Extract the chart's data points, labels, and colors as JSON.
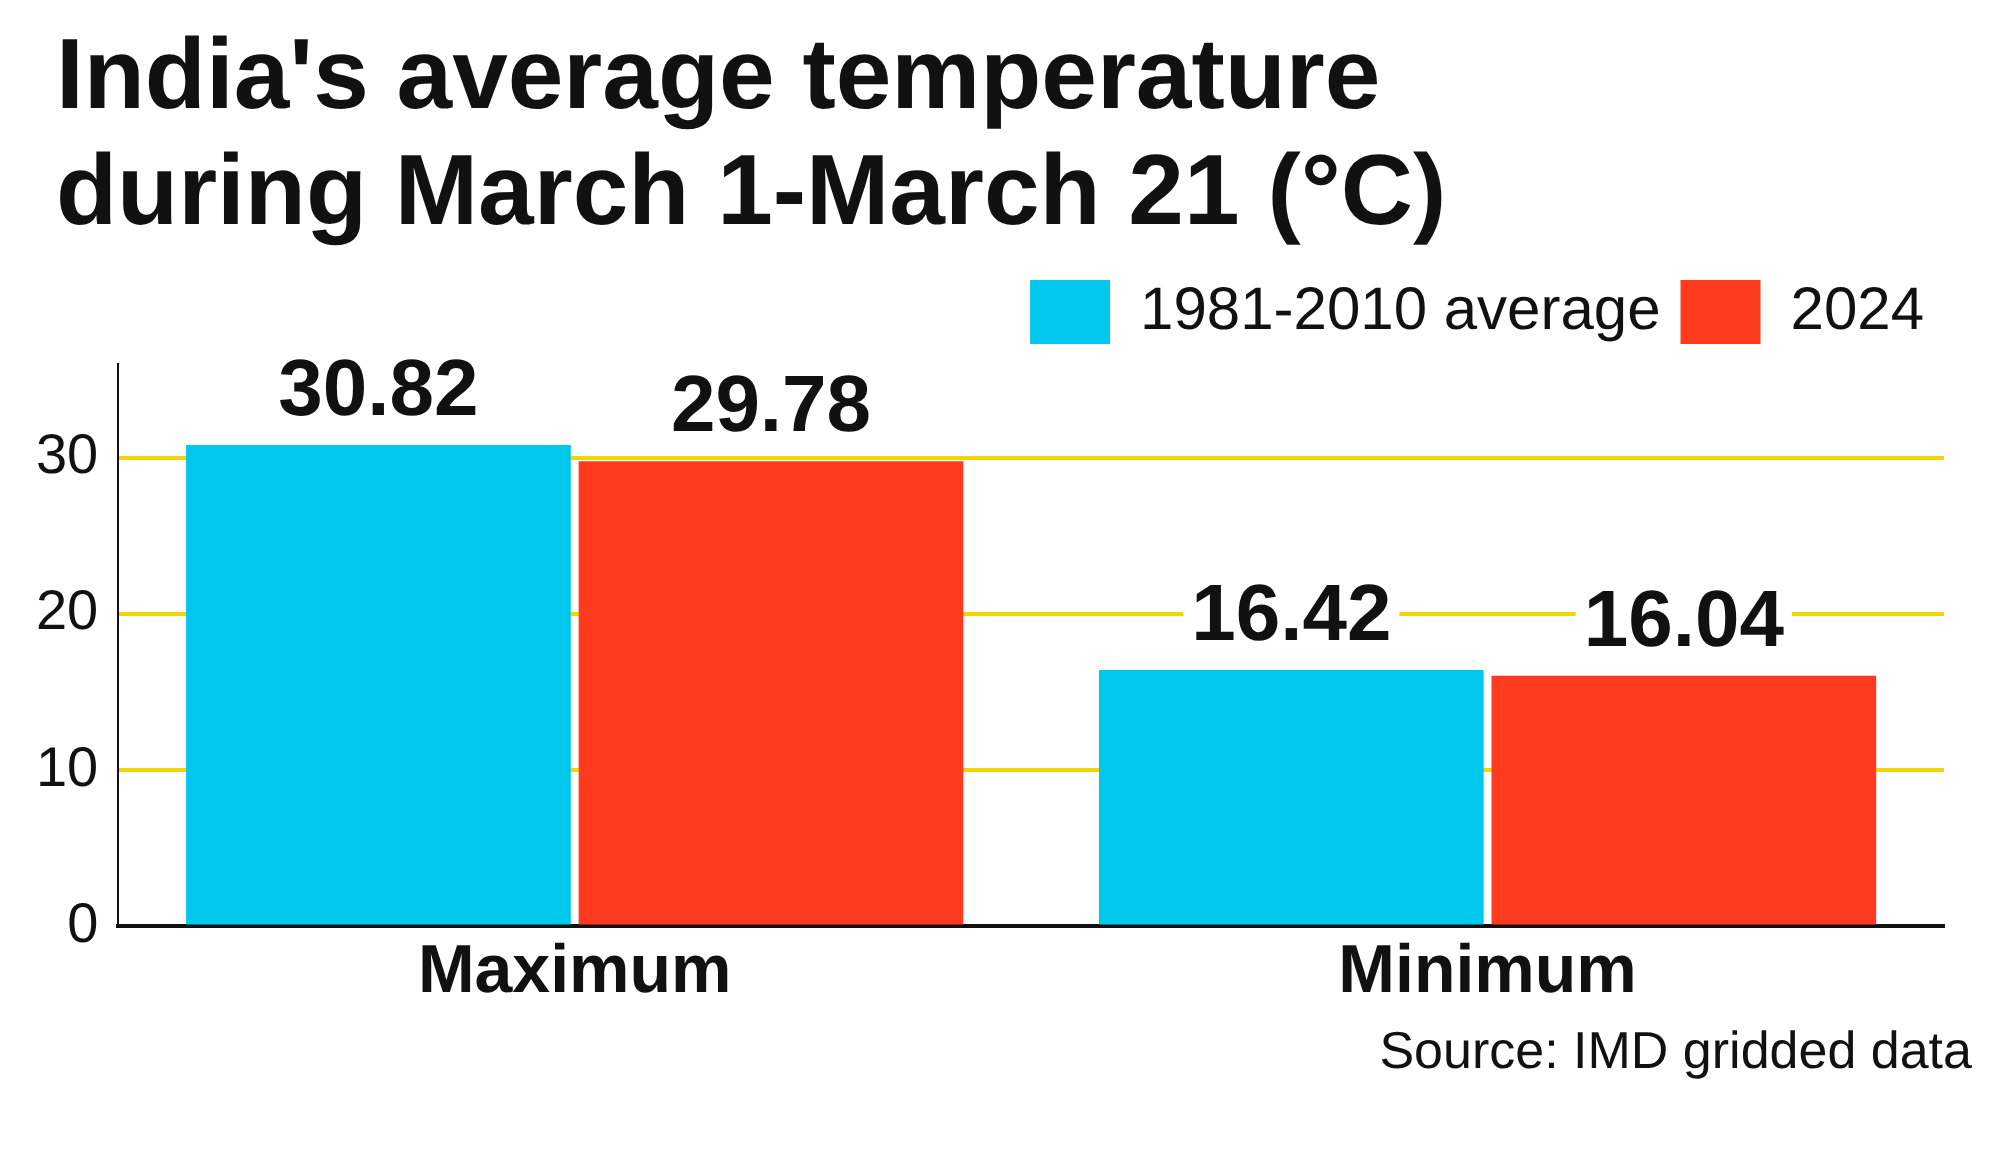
{
  "chart_data": {
    "type": "bar",
    "title": "India's average temperature during March 1-March 21 (°C)",
    "categories": [
      "Maximum",
      "Minimum"
    ],
    "series": [
      {
        "name": "1981-2010 average",
        "color": "#00c8ec",
        "values": [
          30.82,
          16.42
        ]
      },
      {
        "name": "2024",
        "color": "#ff3b1f",
        "values": [
          29.78,
          16.04
        ]
      }
    ],
    "ylim": [
      0,
      36
    ],
    "yticks": [
      0,
      10,
      20,
      30
    ],
    "grid": "y",
    "legend": "top right",
    "data_labels": true,
    "annotations": [
      "Source: IMD gridded data"
    ]
  }
}
